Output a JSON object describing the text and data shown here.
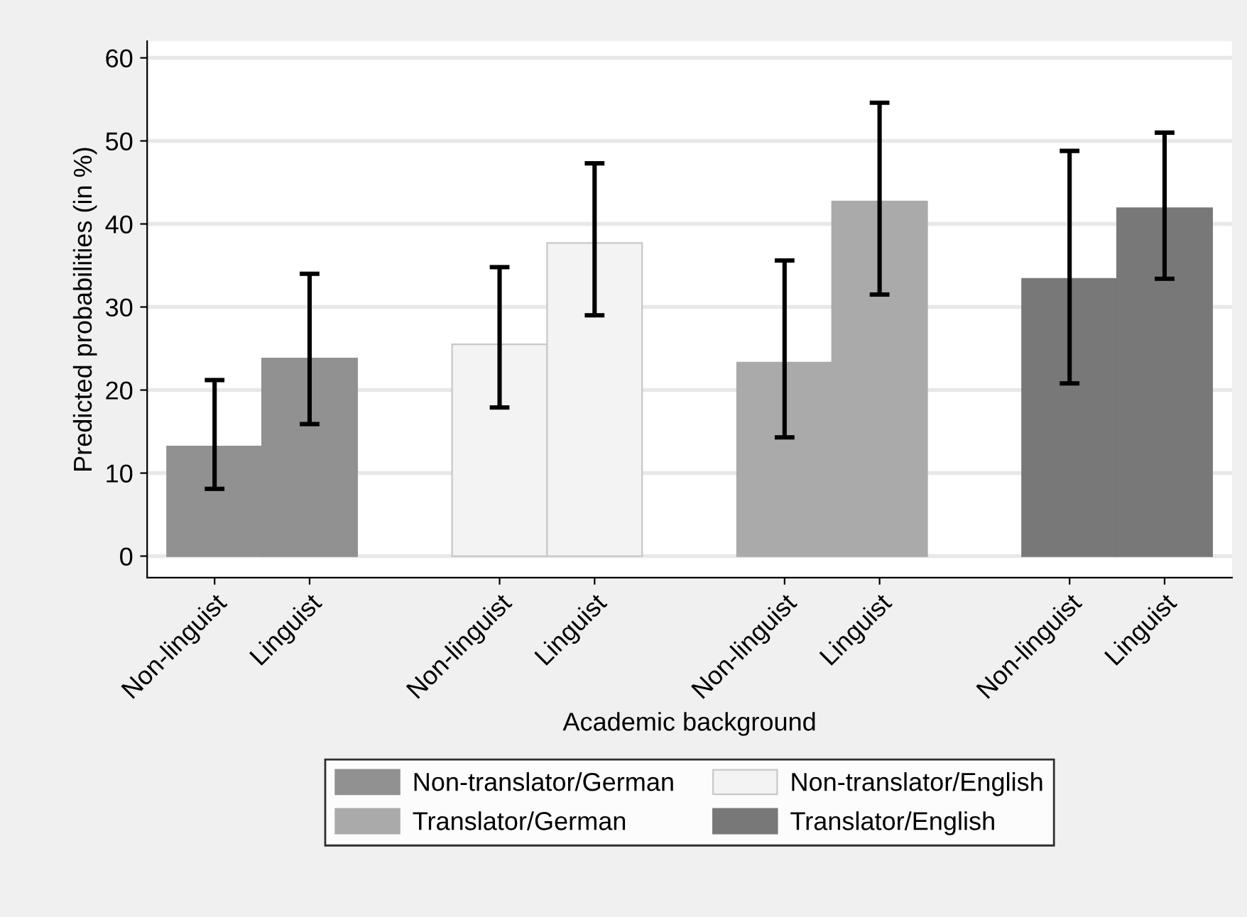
{
  "chart_data": {
    "type": "bar",
    "xlabel": "Academic background",
    "ylabel": "Predicted probabilities (in %)",
    "categories": [
      "Non-linguist",
      "Linguist",
      null,
      "Non-linguist",
      "Linguist",
      null,
      "Non-linguist",
      "Linguist",
      null,
      "Non-linguist",
      "Linguist"
    ],
    "series": [
      {
        "name": "Non-translator/German",
        "color": "#919191",
        "values": [
          13.2,
          23.8,
          null,
          null,
          null,
          null,
          null,
          null,
          null,
          null,
          null
        ],
        "errors": [
          [
            8.1,
            21.2
          ],
          [
            15.9,
            34.0
          ],
          null,
          null,
          null,
          null,
          null,
          null,
          null,
          null,
          null
        ]
      },
      {
        "name": "Non-translator/English",
        "color": "#f3f3f3",
        "values": [
          null,
          null,
          null,
          25.5,
          37.7,
          null,
          null,
          null,
          null,
          null,
          null
        ],
        "errors": [
          null,
          null,
          null,
          [
            17.9,
            34.8
          ],
          [
            29.0,
            47.3
          ],
          null,
          null,
          null,
          null,
          null,
          null
        ]
      },
      {
        "name": "Translator/German",
        "color": "#aaaaaa",
        "values": [
          null,
          null,
          null,
          null,
          null,
          null,
          23.3,
          42.7,
          null,
          null,
          null
        ],
        "errors": [
          null,
          null,
          null,
          null,
          null,
          null,
          [
            14.3,
            35.6
          ],
          [
            31.5,
            54.6
          ],
          null,
          null,
          null
        ]
      },
      {
        "name": "Translator/English",
        "color": "#787878",
        "values": [
          null,
          null,
          null,
          null,
          null,
          null,
          null,
          null,
          null,
          33.4,
          41.9
        ],
        "errors": [
          null,
          null,
          null,
          null,
          null,
          null,
          null,
          null,
          null,
          [
            20.8,
            48.8
          ],
          [
            33.4,
            51.0
          ]
        ]
      }
    ],
    "ylim": [
      -2.6,
      62
    ],
    "yticks": [
      0,
      10,
      20,
      30,
      40,
      50,
      60
    ],
    "grid": "y",
    "legend": "bottom"
  }
}
